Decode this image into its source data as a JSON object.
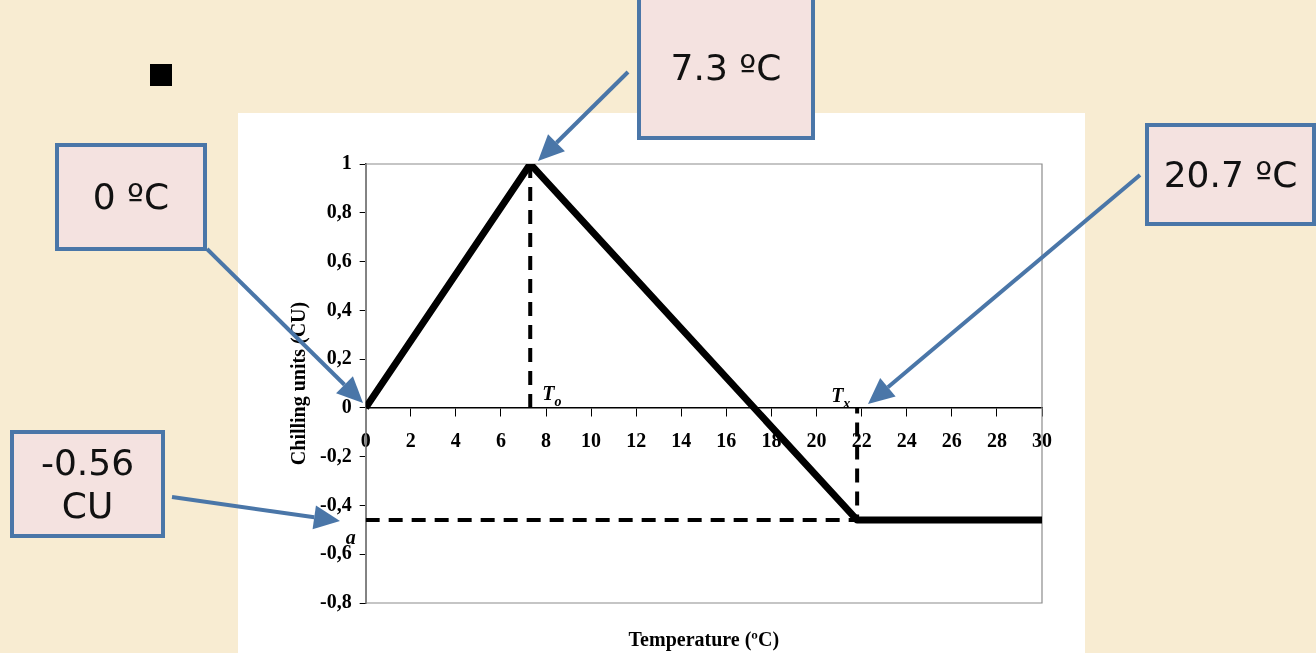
{
  "chart_data": {
    "type": "line",
    "xlabel": "Temperature (ºC)",
    "ylabel": "Chilling units (CU)",
    "xlim": [
      0,
      30
    ],
    "xticks": [
      0,
      2,
      4,
      6,
      8,
      10,
      12,
      14,
      16,
      18,
      20,
      22,
      24,
      26,
      28,
      30
    ],
    "ylim": [
      -0.8,
      1
    ],
    "yticks": [
      {
        "value": -0.8,
        "label": "-0,8"
      },
      {
        "value": -0.6,
        "label": "-0,6"
      },
      {
        "value": -0.4,
        "label": "-0,4"
      },
      {
        "value": -0.2,
        "label": "-0,2"
      },
      0,
      {
        "value": 0.2,
        "label": "0,2"
      },
      {
        "value": 0.4,
        "label": "0,4"
      },
      {
        "value": 0.6,
        "label": "0,6"
      },
      {
        "value": 0.8,
        "label": "0,8"
      },
      1
    ],
    "grid": false,
    "legend": false,
    "marker": "none",
    "series": [
      {
        "color": "#000000",
        "x": [
          0,
          7.3,
          21.8,
          30
        ],
        "values": [
          0,
          1,
          -0.46,
          -0.46
        ],
        "line_style": "solid"
      },
      {
        "color": "#000000",
        "x": [
          7.3,
          7.3
        ],
        "values": [
          1,
          0
        ],
        "line_style": "dashed"
      },
      {
        "color": "#000000",
        "x": [
          0,
          21.8,
          21.8
        ],
        "values": [
          -0.46,
          -0.46,
          0
        ],
        "line_style": "dashed"
      }
    ],
    "annotations": [
      "0 ºC",
      "7.3 ºC",
      "20.7 ºC",
      "-0.56 CU",
      {
        "text": "T$_{o}$",
        "x": 7.3,
        "y": 0
      },
      {
        "text": "T$_{x}$",
        "x": 21.8,
        "y": 0
      },
      {
        "text": "a",
        "x": 0,
        "y": -0.46
      }
    ]
  }
}
